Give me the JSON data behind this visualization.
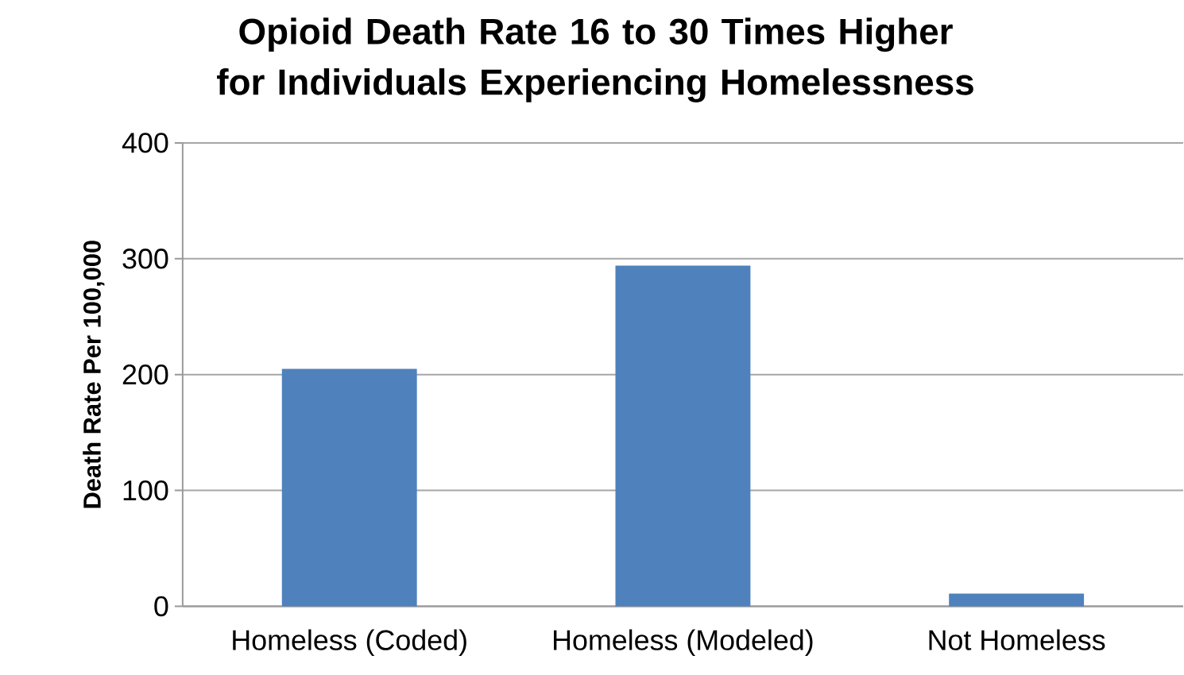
{
  "chart_data": {
    "type": "bar",
    "title": "Opioid Death Rate 16 to 30 Times Higher for Individuals Experiencing Homelessness",
    "ylabel": "Death Rate Per 100,000",
    "categories": [
      "Homeless (Coded)",
      "Homeless (Modeled)",
      "Not Homeless"
    ],
    "values": [
      205,
      294,
      11
    ],
    "color": "#4f81bd",
    "ylim": [
      0,
      400
    ],
    "yticks": [
      0,
      100,
      200,
      300,
      400
    ],
    "grid": "y"
  }
}
